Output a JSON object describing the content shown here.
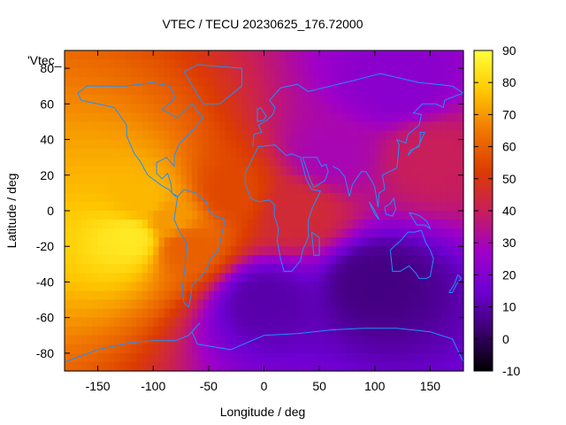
{
  "chart_data": {
    "type": "heatmap",
    "title": "VTEC / TECU 20230625_176.72000",
    "series_label": "'Vtec_",
    "xlabel": "Longitude / deg",
    "ylabel": "Latitude / deg",
    "xlim": [
      -180,
      180
    ],
    "ylim": [
      -90,
      90
    ],
    "x_ticks": [
      "-150",
      "-100",
      "-50",
      "0",
      "50",
      "100",
      "150"
    ],
    "x_tick_values": [
      -150,
      -100,
      -50,
      0,
      50,
      100,
      150
    ],
    "y_ticks": [
      "-80",
      "-60",
      "-40",
      "-20",
      "0",
      "20",
      "40",
      "60",
      "80"
    ],
    "y_tick_values": [
      -80,
      -60,
      -40,
      -20,
      0,
      20,
      40,
      60,
      80
    ],
    "colorbar": {
      "range": [
        -10,
        90
      ],
      "ticks": [
        "90",
        "80",
        "70",
        "60",
        "50",
        "40",
        "30",
        "20",
        "10",
        "0",
        "-10"
      ],
      "tick_values": [
        90,
        80,
        70,
        60,
        50,
        40,
        30,
        20,
        10,
        0,
        -10
      ],
      "stops": [
        "#000000",
        "#3a006e",
        "#6e00d2",
        "#a000c8",
        "#c81e5a",
        "#dc3c00",
        "#f07800",
        "#ffc800",
        "#ffff3c"
      ]
    },
    "field_description_points": [
      {
        "lon": -120,
        "lat": -15,
        "tec": 85
      },
      {
        "lon": -110,
        "lat": 5,
        "tec": 75
      },
      {
        "lon": -85,
        "lat": -5,
        "tec": 70
      },
      {
        "lon": -70,
        "lat": -20,
        "tec": 60
      },
      {
        "lon": -30,
        "lat": 10,
        "tec": 55
      },
      {
        "lon": 30,
        "lat": 0,
        "tec": 45
      },
      {
        "lon": 150,
        "lat": 30,
        "tec": 40
      },
      {
        "lon": 60,
        "lat": 30,
        "tec": 30
      },
      {
        "lon": 0,
        "lat": -50,
        "tec": 10
      },
      {
        "lon": 100,
        "lat": -40,
        "tec": 5
      },
      {
        "lon": 120,
        "lat": 70,
        "tec": 22
      }
    ]
  }
}
